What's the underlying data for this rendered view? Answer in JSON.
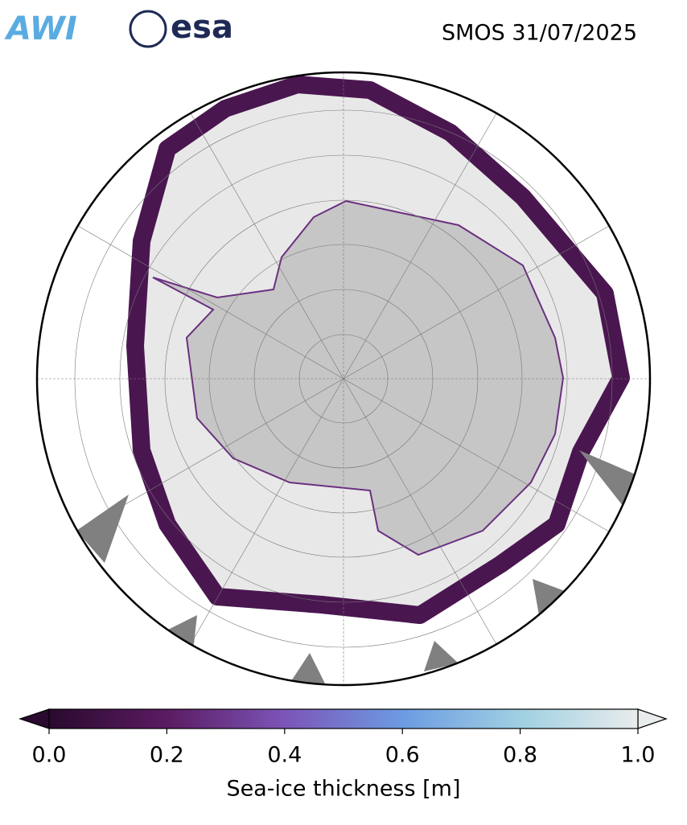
{
  "header": {
    "logos": [
      "AWI",
      "esa"
    ],
    "title": "SMOS 31/07/2025"
  },
  "colorbar": {
    "label": "Sea-ice thickness [m]",
    "range": [
      0,
      1
    ],
    "ticks": [
      {
        "value": 0,
        "label": "0.0"
      },
      0.2,
      0.4,
      0.6,
      0.8,
      {
        "value": 1,
        "label": "1.0"
      }
    ],
    "colors": [
      "#2a0a2e",
      "#5b1b62",
      "#7c55b8",
      "#6c9be2",
      "#9fd0e2",
      "#e9ecec"
    ]
  }
}
